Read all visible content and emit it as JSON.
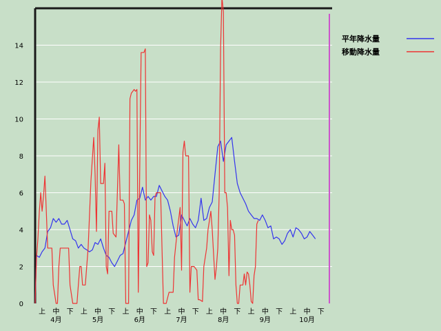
{
  "chart_data": {
    "type": "line",
    "ylim": [
      0,
      16
    ],
    "yticks": [
      0,
      2,
      4,
      6,
      8,
      10,
      12,
      14
    ],
    "grid": true,
    "legend_position": "top-right",
    "xrange": [
      0,
      213
    ],
    "period_ticks": [
      {
        "x": 5,
        "label": "上"
      },
      {
        "x": 15,
        "label": "中"
      },
      {
        "x": 25,
        "label": "下"
      },
      {
        "x": 35,
        "label": "上"
      },
      {
        "x": 45,
        "label": "中"
      },
      {
        "x": 55,
        "label": "下"
      },
      {
        "x": 65,
        "label": "上"
      },
      {
        "x": 75,
        "label": "中"
      },
      {
        "x": 85,
        "label": "下"
      },
      {
        "x": 95,
        "label": "上"
      },
      {
        "x": 105,
        "label": "中"
      },
      {
        "x": 115,
        "label": "下"
      },
      {
        "x": 125,
        "label": "上"
      },
      {
        "x": 135,
        "label": "中"
      },
      {
        "x": 145,
        "label": "下"
      },
      {
        "x": 155,
        "label": "上"
      },
      {
        "x": 165,
        "label": "中"
      },
      {
        "x": 175,
        "label": "下"
      },
      {
        "x": 185,
        "label": "上"
      },
      {
        "x": 195,
        "label": "中"
      },
      {
        "x": 205,
        "label": "下"
      }
    ],
    "month_labels": [
      {
        "x": 15,
        "label": "4月"
      },
      {
        "x": 45,
        "label": "5月"
      },
      {
        "x": 75,
        "label": "6月"
      },
      {
        "x": 105,
        "label": "7月"
      },
      {
        "x": 135,
        "label": "8月"
      },
      {
        "x": 165,
        "label": "9月"
      },
      {
        "x": 195,
        "label": "10月"
      }
    ],
    "series": [
      {
        "name": "平年降水量",
        "color": "#3333ee",
        "points": [
          [
            0,
            0
          ],
          [
            1,
            2.6
          ],
          [
            3,
            2.5
          ],
          [
            5,
            2.8
          ],
          [
            7,
            3.0
          ],
          [
            9,
            3.9
          ],
          [
            11,
            4.1
          ],
          [
            13,
            4.6
          ],
          [
            15,
            4.4
          ],
          [
            17,
            4.6
          ],
          [
            19,
            4.3
          ],
          [
            21,
            4.3
          ],
          [
            23,
            4.5
          ],
          [
            25,
            4.0
          ],
          [
            27,
            3.5
          ],
          [
            29,
            3.4
          ],
          [
            31,
            3.0
          ],
          [
            33,
            3.2
          ],
          [
            35,
            3.0
          ],
          [
            37,
            2.9
          ],
          [
            39,
            2.8
          ],
          [
            41,
            2.9
          ],
          [
            43,
            3.3
          ],
          [
            45,
            3.2
          ],
          [
            47,
            3.5
          ],
          [
            49,
            3.0
          ],
          [
            51,
            2.6
          ],
          [
            53,
            2.5
          ],
          [
            55,
            2.2
          ],
          [
            57,
            2.0
          ],
          [
            59,
            2.3
          ],
          [
            61,
            2.6
          ],
          [
            63,
            2.7
          ],
          [
            65,
            3.3
          ],
          [
            67,
            3.9
          ],
          [
            69,
            4.5
          ],
          [
            71,
            4.8
          ],
          [
            73,
            5.6
          ],
          [
            75,
            5.7
          ],
          [
            77,
            6.3
          ],
          [
            79,
            5.6
          ],
          [
            81,
            5.8
          ],
          [
            83,
            5.6
          ],
          [
            85,
            5.8
          ],
          [
            87,
            5.8
          ],
          [
            89,
            6.4
          ],
          [
            91,
            6.1
          ],
          [
            93,
            5.8
          ],
          [
            95,
            5.6
          ],
          [
            97,
            5.0
          ],
          [
            99,
            4.2
          ],
          [
            101,
            3.6
          ],
          [
            103,
            3.7
          ],
          [
            105,
            4.8
          ],
          [
            107,
            4.5
          ],
          [
            109,
            4.2
          ],
          [
            111,
            4.6
          ],
          [
            113,
            4.3
          ],
          [
            115,
            4.1
          ],
          [
            117,
            4.5
          ],
          [
            119,
            5.7
          ],
          [
            121,
            4.5
          ],
          [
            123,
            4.6
          ],
          [
            125,
            5.2
          ],
          [
            127,
            5.5
          ],
          [
            129,
            7.0
          ],
          [
            131,
            8.5
          ],
          [
            133,
            8.8
          ],
          [
            135,
            7.7
          ],
          [
            137,
            8.6
          ],
          [
            139,
            8.8
          ],
          [
            141,
            9.0
          ],
          [
            143,
            7.7
          ],
          [
            145,
            6.5
          ],
          [
            147,
            6.0
          ],
          [
            149,
            5.7
          ],
          [
            151,
            5.4
          ],
          [
            153,
            5.0
          ],
          [
            155,
            4.8
          ],
          [
            157,
            4.6
          ],
          [
            159,
            4.6
          ],
          [
            161,
            4.5
          ],
          [
            163,
            4.8
          ],
          [
            165,
            4.5
          ],
          [
            167,
            4.1
          ],
          [
            169,
            4.2
          ],
          [
            171,
            3.5
          ],
          [
            173,
            3.6
          ],
          [
            175,
            3.5
          ],
          [
            177,
            3.2
          ],
          [
            179,
            3.4
          ],
          [
            181,
            3.8
          ],
          [
            183,
            4.0
          ],
          [
            185,
            3.6
          ],
          [
            187,
            4.1
          ],
          [
            189,
            4.0
          ],
          [
            191,
            3.8
          ],
          [
            193,
            3.5
          ],
          [
            195,
            3.6
          ],
          [
            197,
            3.9
          ],
          [
            199,
            3.7
          ],
          [
            201,
            3.5
          ]
        ]
      },
      {
        "name": "移動降水量",
        "color": "#ee3333",
        "points": [
          [
            0,
            0
          ],
          [
            1,
            2.5
          ],
          [
            2,
            3.5
          ],
          [
            3,
            5.0
          ],
          [
            4,
            6.0
          ],
          [
            5,
            5.0
          ],
          [
            6,
            5.8
          ],
          [
            7,
            6.9
          ],
          [
            8,
            5.0
          ],
          [
            9,
            3.0
          ],
          [
            10,
            3.0
          ],
          [
            12,
            3.0
          ],
          [
            13,
            1.0
          ],
          [
            15,
            0
          ],
          [
            16,
            0
          ],
          [
            17,
            2.0
          ],
          [
            18,
            3.0
          ],
          [
            24,
            3.0
          ],
          [
            25,
            1.0
          ],
          [
            27,
            0
          ],
          [
            30,
            0
          ],
          [
            31,
            1.0
          ],
          [
            32,
            2.0
          ],
          [
            33,
            2.0
          ],
          [
            34,
            1.0
          ],
          [
            36,
            1.0
          ],
          [
            38,
            3.0
          ],
          [
            40,
            6.6
          ],
          [
            42,
            9.0
          ],
          [
            43,
            7.0
          ],
          [
            44,
            3.9
          ],
          [
            45,
            9.4
          ],
          [
            46,
            10.1
          ],
          [
            47,
            6.5
          ],
          [
            49,
            6.5
          ],
          [
            50,
            7.6
          ],
          [
            51,
            2.0
          ],
          [
            52,
            1.6
          ],
          [
            53,
            5.0
          ],
          [
            55,
            5.0
          ],
          [
            56,
            3.8
          ],
          [
            58,
            3.6
          ],
          [
            60,
            8.6
          ],
          [
            61,
            5.6
          ],
          [
            63,
            5.6
          ],
          [
            64,
            5.4
          ],
          [
            65,
            0
          ],
          [
            67,
            0
          ],
          [
            68,
            11.1
          ],
          [
            69,
            11.4
          ],
          [
            71,
            11.6
          ],
          [
            72,
            11.5
          ],
          [
            73,
            11.6
          ],
          [
            74,
            0.6
          ],
          [
            76,
            13.6
          ],
          [
            78,
            13.6
          ],
          [
            79,
            13.8
          ],
          [
            80,
            2.0
          ],
          [
            81,
            2.2
          ],
          [
            82,
            4.8
          ],
          [
            83,
            4.5
          ],
          [
            84,
            2.8
          ],
          [
            85,
            2.6
          ],
          [
            86,
            5.8
          ],
          [
            87,
            6.0
          ],
          [
            90,
            6.0
          ],
          [
            91,
            3.0
          ],
          [
            92,
            0
          ],
          [
            94,
            0
          ],
          [
            95,
            0.3
          ],
          [
            96,
            0.6
          ],
          [
            99,
            0.6
          ],
          [
            100,
            2.5
          ],
          [
            102,
            4.0
          ],
          [
            104,
            5.2
          ],
          [
            105,
            1.8
          ],
          [
            106,
            8.2
          ],
          [
            107,
            8.8
          ],
          [
            108,
            8.0
          ],
          [
            110,
            8.0
          ],
          [
            111,
            0.6
          ],
          [
            112,
            2.0
          ],
          [
            114,
            2.0
          ],
          [
            116,
            1.8
          ],
          [
            117,
            0.2
          ],
          [
            118,
            0.2
          ],
          [
            120,
            0.1
          ],
          [
            121,
            2.0
          ],
          [
            123,
            3.0
          ],
          [
            124,
            4.0
          ],
          [
            126,
            5.0
          ],
          [
            127,
            4.0
          ],
          [
            129,
            1.3
          ],
          [
            130,
            2.0
          ],
          [
            131,
            3.0
          ],
          [
            132,
            6.0
          ],
          [
            133,
            13.8
          ],
          [
            134,
            16.6
          ],
          [
            135,
            15.8
          ],
          [
            136,
            6.0
          ],
          [
            137,
            6.0
          ],
          [
            138,
            5.2
          ],
          [
            139,
            1.5
          ],
          [
            140,
            4.5
          ],
          [
            141,
            4.0
          ],
          [
            142,
            4.0
          ],
          [
            143,
            3.7
          ],
          [
            144,
            1.0
          ],
          [
            145,
            0
          ],
          [
            146,
            0
          ],
          [
            147,
            1.0
          ],
          [
            149,
            1.0
          ],
          [
            150,
            1.6
          ],
          [
            151,
            1.0
          ],
          [
            152,
            1.7
          ],
          [
            153,
            1.6
          ],
          [
            154,
            1.0
          ],
          [
            155,
            0.1
          ],
          [
            156,
            0
          ],
          [
            157,
            1.5
          ],
          [
            158,
            2.0
          ],
          [
            159,
            4.3
          ],
          [
            160,
            4.5
          ]
        ]
      }
    ]
  }
}
